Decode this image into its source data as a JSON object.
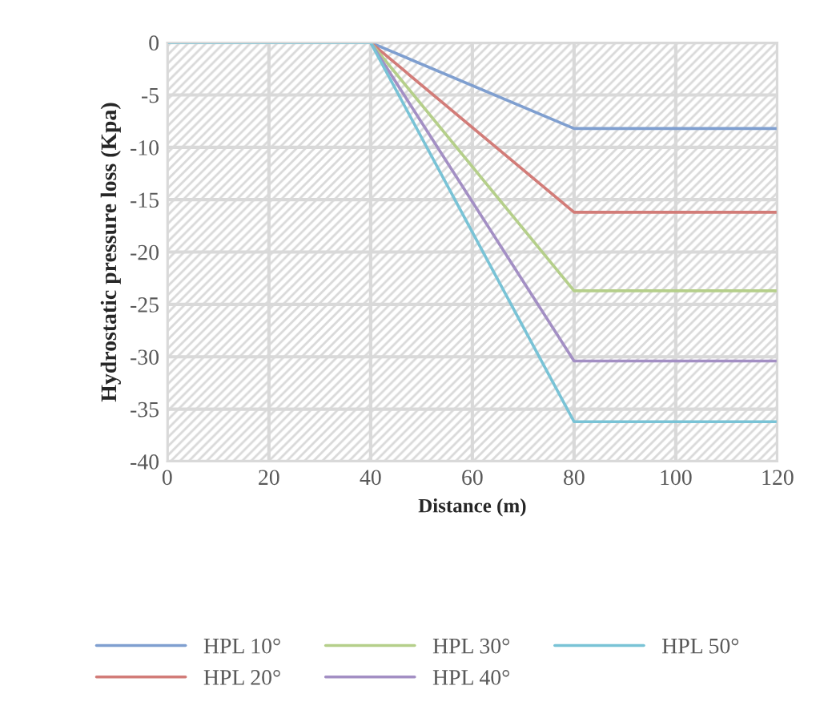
{
  "chart_data": {
    "type": "line",
    "xlabel": "Distance (m)",
    "ylabel": "Hydrostatic pressure loss (Kpa)",
    "x": [
      0,
      40,
      80,
      120
    ],
    "series": [
      {
        "name": "HPL 10°",
        "color": "#7f9fd0",
        "values": [
          0,
          0,
          -8.2,
          -8.2
        ]
      },
      {
        "name": "HPL 20°",
        "color": "#d27c78",
        "values": [
          0,
          0,
          -16.2,
          -16.2
        ]
      },
      {
        "name": "HPL 30°",
        "color": "#b5cf8a",
        "values": [
          0,
          0,
          -23.7,
          -23.7
        ]
      },
      {
        "name": "HPL 40°",
        "color": "#a38fc4",
        "values": [
          0,
          0,
          -30.4,
          -30.4
        ]
      },
      {
        "name": "HPL 50°",
        "color": "#79c3d6",
        "values": [
          0,
          0,
          -36.2,
          -36.2
        ]
      }
    ],
    "xlim": [
      0,
      120
    ],
    "xticks": [
      0,
      20,
      40,
      60,
      80,
      100,
      120
    ],
    "ylim": [
      -40,
      0
    ],
    "yticks": [
      -40,
      -35,
      -30,
      -25,
      -20,
      -15,
      -10,
      -5,
      0
    ],
    "grid": true,
    "legend": "bottom",
    "marker": "none",
    "line_style": "solid"
  }
}
